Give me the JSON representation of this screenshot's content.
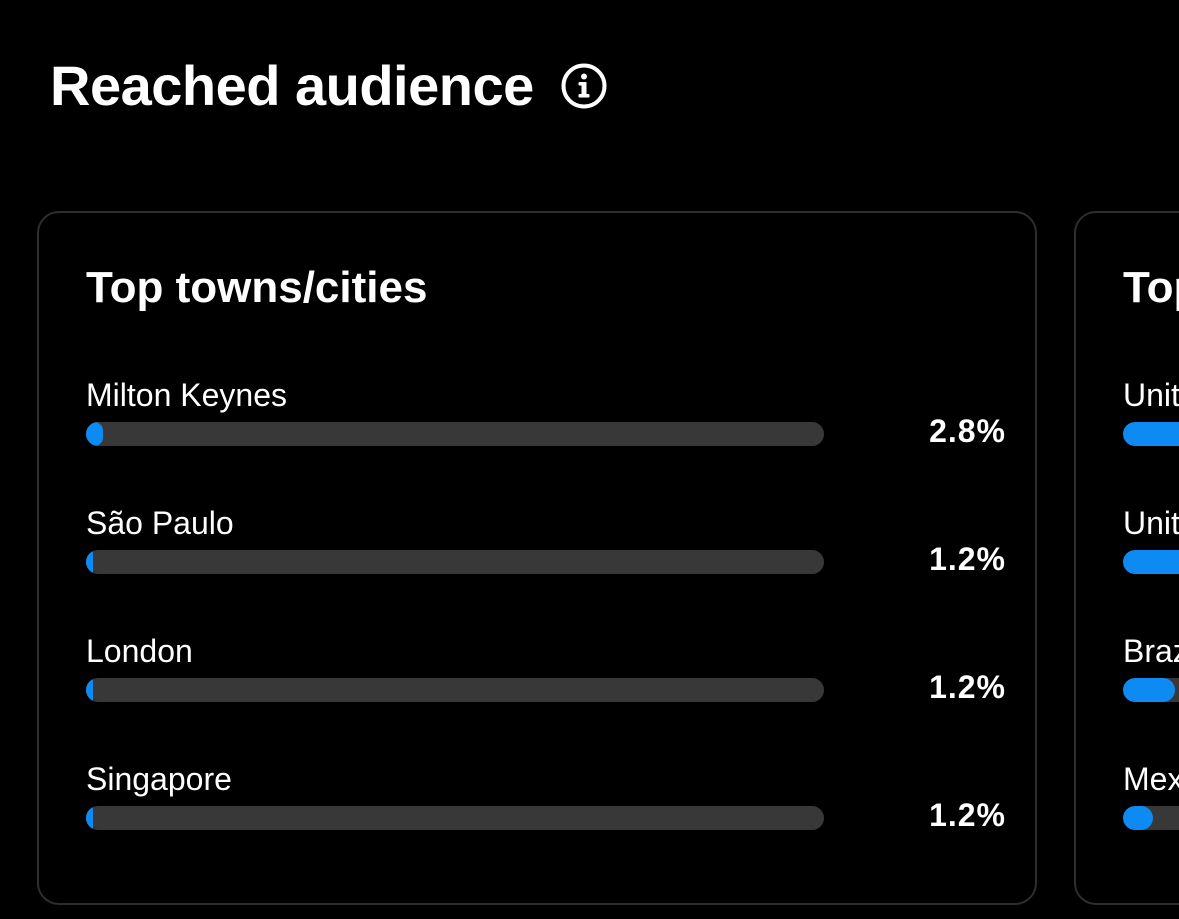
{
  "header": {
    "title": "Reached audience",
    "info_icon": "info-circle-icon"
  },
  "colors": {
    "background": "#000000",
    "card_border": "#2e2e2e",
    "track": "#383838",
    "accent": "#0d8bf2",
    "text": "#ffffff"
  },
  "cities": {
    "title": "Top towns/cities",
    "rows": [
      {
        "label": "Milton Keynes",
        "value": "2.8%",
        "fill": 0.028
      },
      {
        "label": "São Paulo",
        "value": "1.2%",
        "fill": 0.012
      },
      {
        "label": "London",
        "value": "1.2%",
        "fill": 0.012
      },
      {
        "label": "Singapore",
        "value": "1.2%",
        "fill": 0.012
      }
    ]
  },
  "countries": {
    "title": "Top",
    "rows": [
      {
        "label": "Unit"
      },
      {
        "label": "Unit"
      },
      {
        "label": "Braz"
      },
      {
        "label": "Mex"
      }
    ]
  }
}
